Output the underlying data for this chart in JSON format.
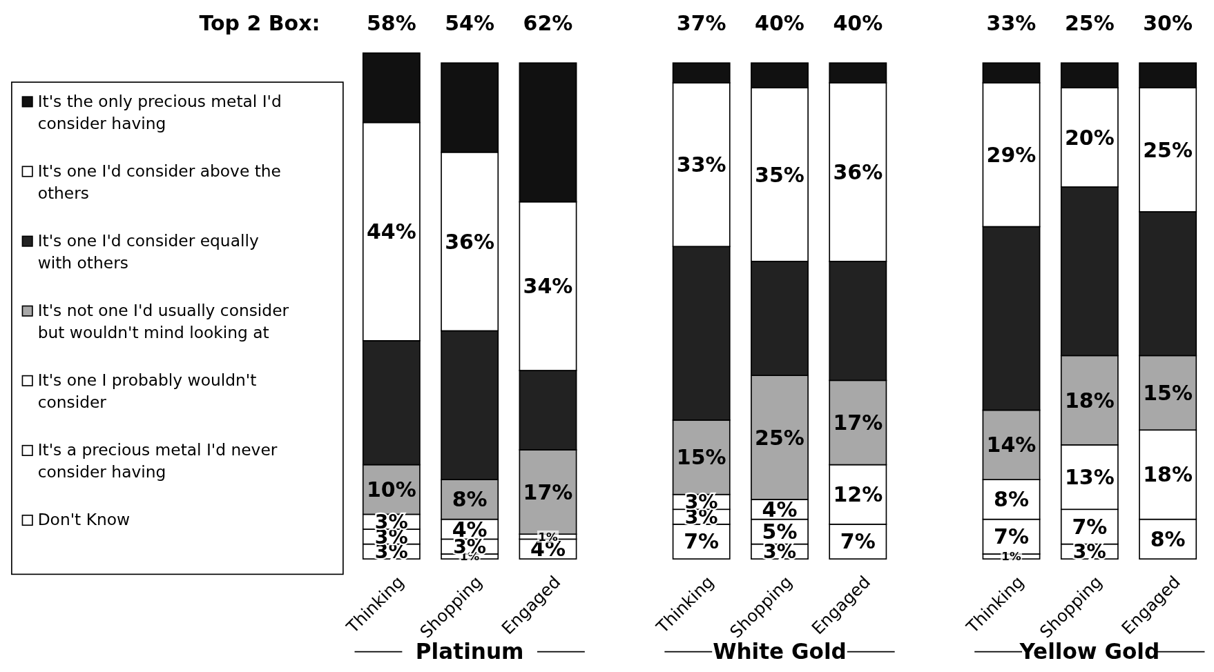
{
  "chart_data": {
    "type": "bar",
    "stacked": true,
    "legend": "left",
    "data_labels": false,
    "categories": [
      "Thinking",
      "Shopping",
      "Engaged",
      "Thinking",
      "Shopping",
      "Engaged",
      "Thinking",
      "Shopping",
      "Engaged"
    ],
    "series": [
      {
        "name": "Don't Know",
        "color": "#ffffff",
        "values": [
          3,
          1,
          4,
          7,
          3,
          7,
          1,
          3,
          8
        ],
        "value_labels": [
          "3%",
          "1%",
          "4%",
          "7%",
          "3%",
          "7%",
          "1%",
          "3%",
          "8%"
        ]
      },
      {
        "name": "It's a precious metal I'd never consider having",
        "color": "#ffffff",
        "values": [
          3,
          3,
          0,
          3,
          5,
          0,
          7,
          7,
          0
        ],
        "value_labels": [
          "3%",
          "3%",
          null,
          "3%",
          "5%",
          null,
          "7%",
          "7%",
          null
        ]
      },
      {
        "name": "It's one I probably wouldn't consider",
        "color": "#ffffff",
        "values": [
          3,
          4,
          1,
          3,
          4,
          12,
          8,
          13,
          18
        ],
        "value_labels": [
          "3%",
          "4%",
          "1%",
          "3%",
          "4%",
          "12%",
          "8%",
          "13%",
          "18%"
        ]
      },
      {
        "name": "It's not one I'd usually consider but wouldn't mind looking at",
        "color": "#a8a8a8",
        "values": [
          10,
          8,
          17,
          15,
          25,
          17,
          14,
          18,
          15
        ],
        "value_labels": [
          "10%",
          "8%",
          "17%",
          "15%",
          "25%",
          "17%",
          "14%",
          "18%",
          "15%"
        ]
      },
      {
        "name": "It's one I'd consider equally with others",
        "color": "#222222",
        "values": [
          25,
          30,
          16,
          35,
          23,
          24,
          37,
          34,
          29
        ],
        "value_labels": [
          null,
          null,
          null,
          null,
          null,
          null,
          null,
          null,
          null
        ]
      },
      {
        "name": "It's one I'd consider above the others",
        "color": "#ffffff",
        "values": [
          44,
          36,
          34,
          33,
          35,
          36,
          29,
          20,
          25
        ],
        "value_labels": [
          "44%",
          "36%",
          "34%",
          "33%",
          "35%",
          "36%",
          "29%",
          "20%",
          "25%"
        ]
      },
      {
        "name": "It's the only precious metal I'd consider having",
        "color": "#111111",
        "values": [
          14,
          18,
          28,
          4,
          5,
          4,
          4,
          5,
          5
        ],
        "value_labels": [
          null,
          null,
          null,
          null,
          null,
          null,
          null,
          null,
          null
        ]
      }
    ],
    "annotations": [
      "Top 2 Box:",
      "58%",
      "54%",
      "62%",
      "37%",
      "40%",
      "40%",
      "33%",
      "25%",
      "30%",
      "Platinum",
      "White Gold",
      "Yellow Gold"
    ]
  }
}
